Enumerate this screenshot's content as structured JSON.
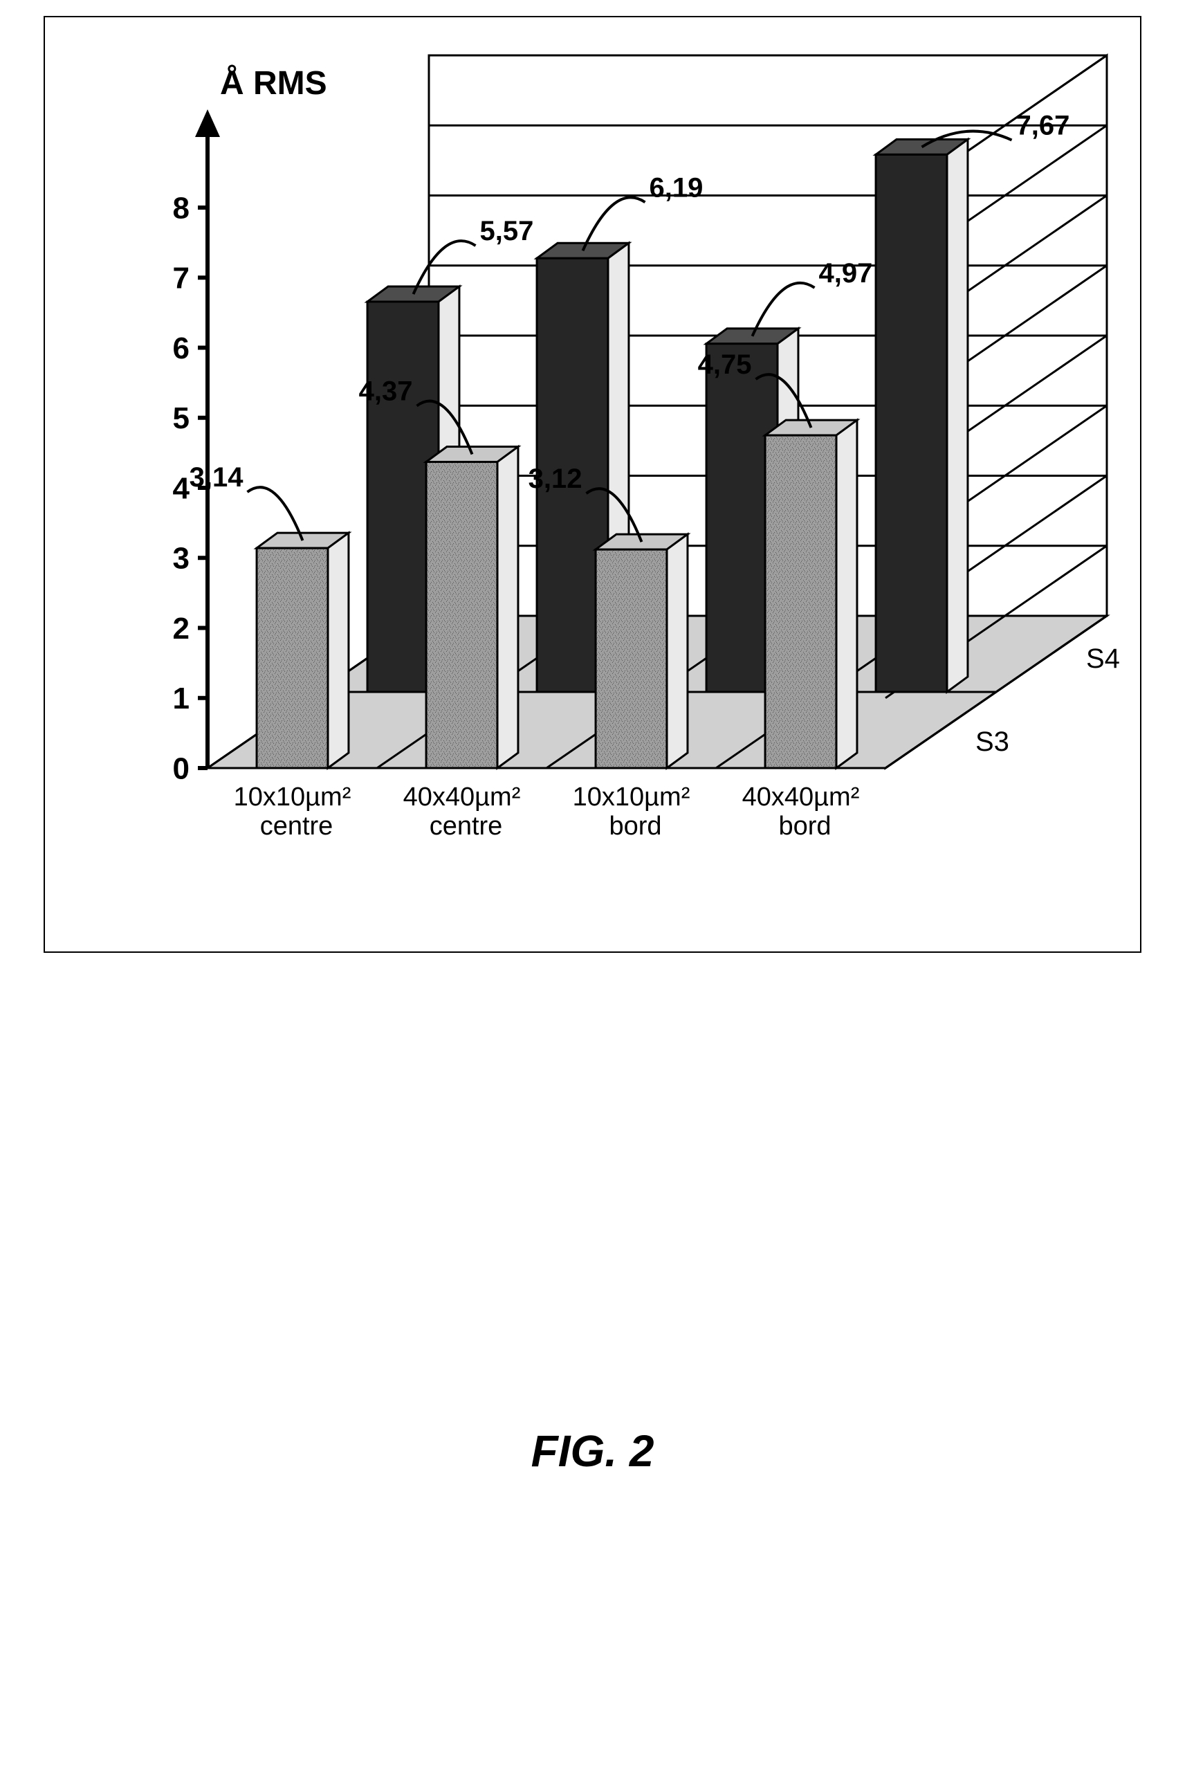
{
  "chart": {
    "type": "bar-3d-grouped",
    "y_axis_label": "Å RMS",
    "y_ticks": [
      0,
      1,
      2,
      3,
      4,
      5,
      6,
      7,
      8
    ],
    "ylim": [
      0,
      8
    ],
    "categories": [
      "10x10µm²\ncentre",
      "40x40µm²\ncentre",
      "10x10µm²\nbord",
      "40x40µm²\nbord"
    ],
    "series": [
      {
        "name": "S3",
        "face_color": "#9e9e9e",
        "side_color": "#eaeaea",
        "top_color": "#c8c8c8",
        "stroke": "#000000",
        "values": [
          3.14,
          4.37,
          3.12,
          4.75
        ],
        "labels": [
          "3,14",
          "4,37",
          "3,12",
          "4,75"
        ]
      },
      {
        "name": "S4",
        "face_color": "#262626",
        "side_color": "#eaeaea",
        "top_color": "#4d4d4d",
        "stroke": "#000000",
        "values": [
          5.57,
          6.19,
          4.97,
          7.67
        ],
        "labels": [
          "5,57",
          "6,19",
          "4,97",
          "7,67"
        ]
      }
    ],
    "grid_color": "#000000",
    "wall_color": "#ffffff",
    "floor_color": "#d0d0d0",
    "axis_arrow_color": "#000000",
    "tick_font_size": 44,
    "category_font_size": 38,
    "series_font_size": 40,
    "ylabel_font_size": 48,
    "label_font_size": 40,
    "callout_stroke": "#000000",
    "axis_stroke_width": 6,
    "grid_stroke_width": 3,
    "bar_stroke_width": 3,
    "perspective": {
      "depth_dx": 30,
      "depth_dy": -22,
      "row_dx": 160,
      "row_dy": -110
    }
  },
  "caption": "FIG. 2"
}
